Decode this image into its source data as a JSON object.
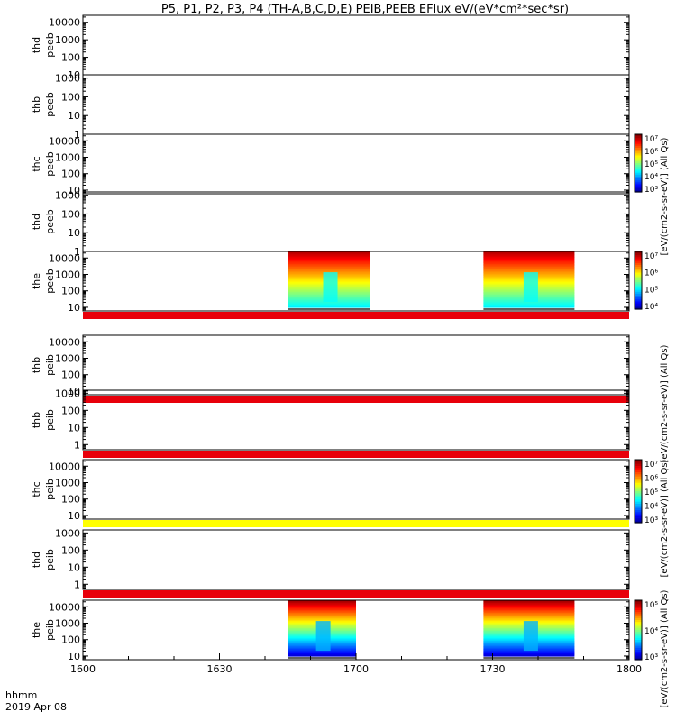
{
  "title": "P5, P1, P2, P3, P4 (TH-A,B,C,D,E) PEIB,PEEB EFlux eV/(eV*cm²*sec*sr)",
  "time_axis": {
    "label_line1": "hhmm",
    "label_line2": "2019 Apr 08",
    "ticks": [
      "1600",
      "1630",
      "1700",
      "1730",
      "1800"
    ]
  },
  "colorbars": [
    {
      "label": "[eV/(cm2-s-sr-eV)] (All Qs)",
      "ticks": [
        "10³",
        "10⁴",
        "10⁵",
        "10⁶",
        "10⁷"
      ]
    },
    {
      "label": "[eV/(cm2-s-sr-eV)] (All Qs)",
      "ticks": [
        "10⁴",
        "10⁵",
        "10⁶",
        "10⁷"
      ]
    },
    {
      "label": "[eV/(cm2-s-sr-eV)] (All Qs)",
      "ticks": [
        "10³",
        "10⁴",
        "10⁵",
        "10⁶",
        "10⁷"
      ]
    },
    {
      "label": "[eV/(cm2-s-sr-eV)] (All Qs)",
      "ticks": [
        "10³",
        "10⁴",
        "10⁵"
      ]
    }
  ],
  "chart_data": {
    "type": "heatmap",
    "x_unit": "hhmm",
    "x_range": [
      "1600",
      "1800"
    ],
    "panels": [
      {
        "name1": "thd",
        "name2": "peeb",
        "yticks": [
          "10",
          "100",
          "1000",
          "10000"
        ],
        "ymin": 10,
        "ymax": 25000,
        "bands": [],
        "stripe": ""
      },
      {
        "name1": "thb",
        "name2": "peeb",
        "yticks": [
          "1",
          "10",
          "100",
          "1000"
        ],
        "ymin": 1,
        "ymax": 1500,
        "bands": [],
        "stripe": ""
      },
      {
        "name1": "thc",
        "name2": "peeb",
        "yticks": [
          "10",
          "100",
          "1000",
          "10000"
        ],
        "ymin": 6,
        "ymax": 25000,
        "bands": [],
        "stripe": ""
      },
      {
        "name1": "thd",
        "name2": "peeb",
        "yticks": [
          "1",
          "10",
          "100",
          "1000"
        ],
        "ymin": 1,
        "ymax": 1500,
        "bands": [],
        "stripe": ""
      },
      {
        "name1": "the",
        "name2": "peeb",
        "yticks": [
          "10",
          "100",
          "1000",
          "10000"
        ],
        "ymin": 6,
        "ymax": 25000,
        "bands": [
          {
            "start": "1645",
            "end": "1703",
            "profile": "electron"
          },
          {
            "start": "1728",
            "end": "1748",
            "profile": "electron"
          }
        ],
        "stripe": "#e8000b"
      },
      {
        "name1": "thb",
        "name2": "peib",
        "yticks": [
          "10",
          "100",
          "1000",
          "10000"
        ],
        "ymin": 6,
        "ymax": 25000,
        "bands": [],
        "stripe": "#e8000b"
      },
      {
        "name1": "thb",
        "name2": "peib",
        "yticks": [
          "1",
          "10",
          "100",
          "1000"
        ],
        "ymin": 0.5,
        "ymax": 1500,
        "bands": [],
        "stripe": "#e8000b"
      },
      {
        "name1": "thc",
        "name2": "peib",
        "yticks": [
          "10",
          "100",
          "1000",
          "10000"
        ],
        "ymin": 6,
        "ymax": 25000,
        "bands": [],
        "stripe": "#ffff00"
      },
      {
        "name1": "thd",
        "name2": "peib",
        "yticks": [
          "1",
          "10",
          "100",
          "1000"
        ],
        "ymin": 0.5,
        "ymax": 1500,
        "bands": [],
        "stripe": "#e8000b"
      },
      {
        "name1": "the",
        "name2": "peib",
        "yticks": [
          "10",
          "100",
          "1000",
          "10000"
        ],
        "ymin": 6,
        "ymax": 25000,
        "bands": [
          {
            "start": "1645",
            "end": "1700",
            "profile": "ion"
          },
          {
            "start": "1728",
            "end": "1748",
            "profile": "ion"
          }
        ],
        "stripe": ""
      }
    ]
  }
}
